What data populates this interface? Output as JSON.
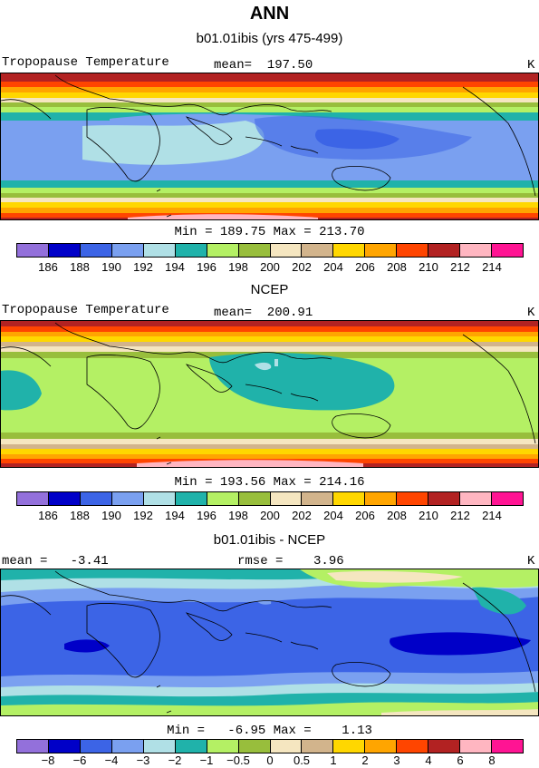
{
  "figure_title": "ANN",
  "panels": [
    {
      "subtitle": "b01.01ibis (yrs 475-499)",
      "left_label": "Tropopause Temperature",
      "center_label": "mean=  197.50",
      "right_label": "K",
      "minmax": "Min = 189.75 Max = 213.70",
      "colorbar_ticks": [
        "186",
        "188",
        "190",
        "192",
        "194",
        "196",
        "198",
        "200",
        "202",
        "204",
        "206",
        "208",
        "210",
        "212",
        "214"
      ]
    },
    {
      "subtitle": "NCEP",
      "left_label": "Tropopause Temperature",
      "center_label": "mean=  200.91",
      "right_label": "K",
      "minmax": "Min = 193.56 Max = 214.16",
      "colorbar_ticks": [
        "186",
        "188",
        "190",
        "192",
        "194",
        "196",
        "198",
        "200",
        "202",
        "204",
        "206",
        "208",
        "210",
        "212",
        "214"
      ]
    },
    {
      "subtitle": "b01.01ibis - NCEP",
      "left_label": "mean =   -3.41",
      "center_label": "rmse =    3.96",
      "right_label": "K",
      "minmax": "Min =   -6.95 Max =    1.13",
      "colorbar_ticks": [
        "−8",
        "−6",
        "−4",
        "−3",
        "−2",
        "−1",
        "−0.5",
        "0",
        "0.5",
        "1",
        "2",
        "3",
        "4",
        "6",
        "8"
      ]
    }
  ],
  "colorbar_colors": [
    "#9370db",
    "#0000c8",
    "#3c64e6",
    "#7aa0f0",
    "#b0e0e6",
    "#20b2aa",
    "#b4f064",
    "#98be3c",
    "#f5e6c0",
    "#d2b48c",
    "#ffd700",
    "#ffa500",
    "#ff4500",
    "#b22222",
    "#ffb6c1",
    "#ff1493"
  ]
}
